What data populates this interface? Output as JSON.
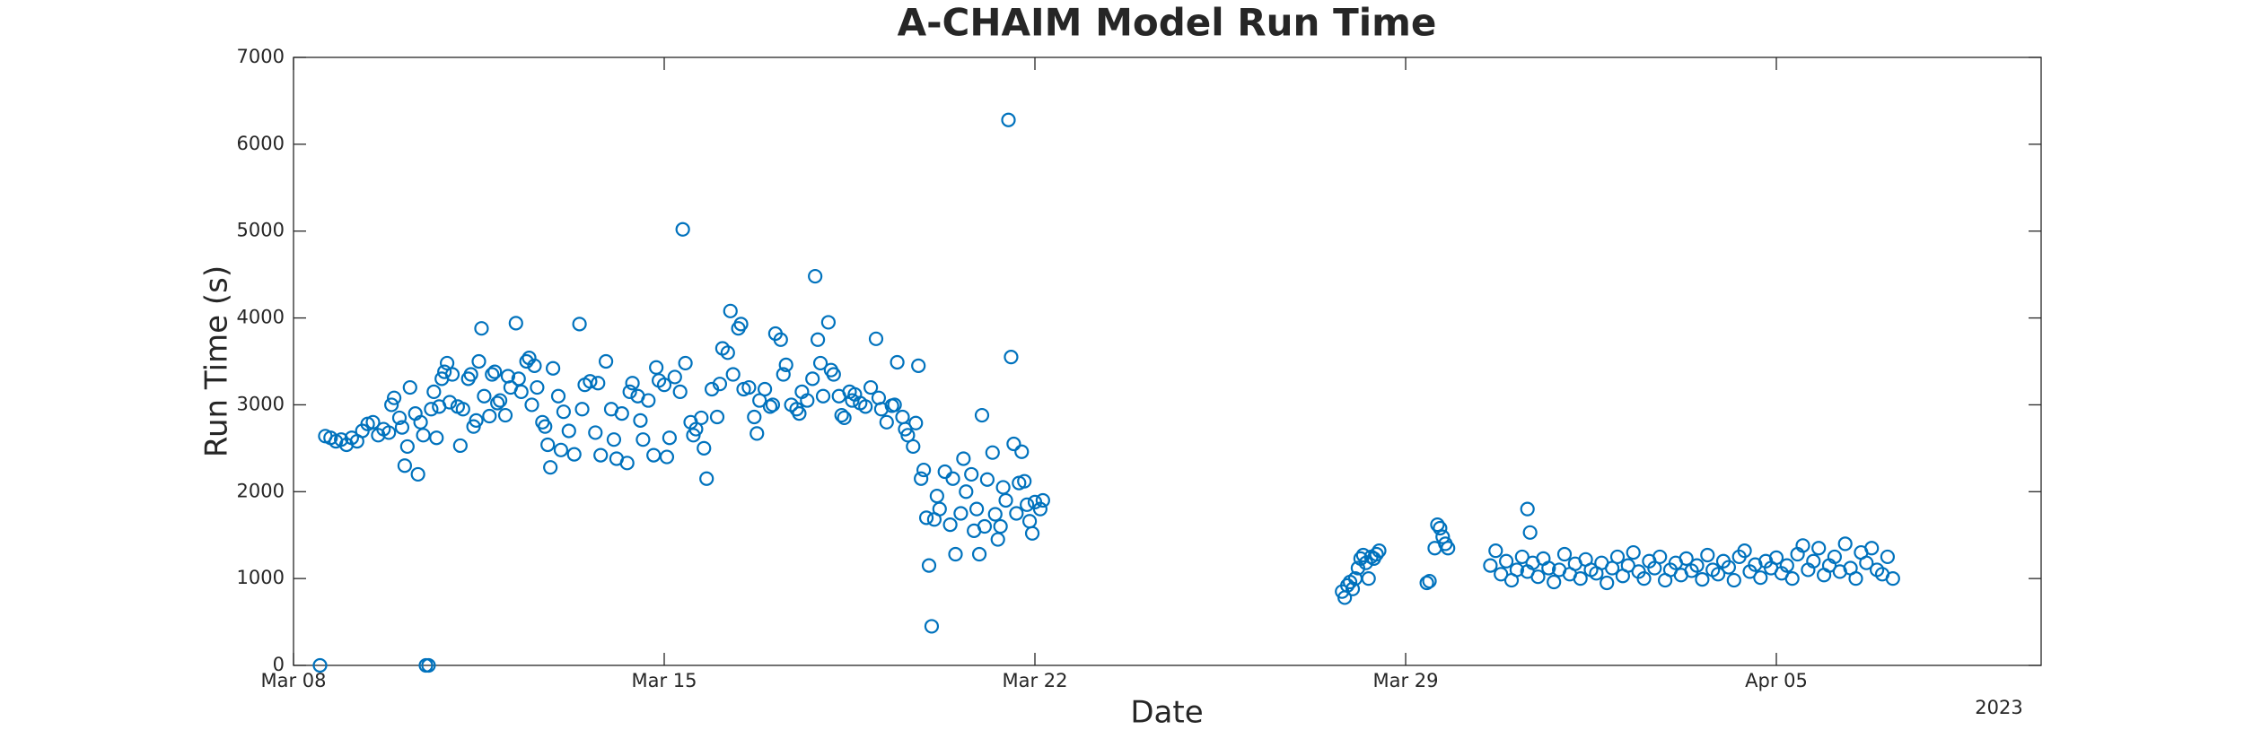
{
  "chart_data": {
    "type": "scatter",
    "title": "A-CHAIM Model Run Time",
    "xlabel": "Date",
    "ylabel": "Run Time (s)",
    "x_secondary_label": "2023",
    "color": "#0072BD",
    "xlim": [
      0,
      33
    ],
    "xticks": [
      {
        "value": 0,
        "label": "Mar 08"
      },
      {
        "value": 7,
        "label": "Mar 15"
      },
      {
        "value": 14,
        "label": "Mar 22"
      },
      {
        "value": 21,
        "label": "Mar 29"
      },
      {
        "value": 28,
        "label": "Apr 05"
      }
    ],
    "ylim": [
      0,
      7000
    ],
    "yticks": [
      0,
      1000,
      2000,
      3000,
      4000,
      5000,
      6000,
      7000
    ],
    "x": [
      0.5,
      0.6,
      0.7,
      0.8,
      0.9,
      1.0,
      1.1,
      1.2,
      1.3,
      1.4,
      1.5,
      1.6,
      1.7,
      1.8,
      1.85,
      1.9,
      2.0,
      2.05,
      2.1,
      2.15,
      2.2,
      2.3,
      2.35,
      2.4,
      2.45,
      2.5,
      2.55,
      2.6,
      2.65,
      2.7,
      2.75,
      2.8,
      2.85,
      2.9,
      2.95,
      3.0,
      3.1,
      3.15,
      3.2,
      3.3,
      3.35,
      3.4,
      3.45,
      3.5,
      3.55,
      3.6,
      3.7,
      3.75,
      3.8,
      3.85,
      3.9,
      4.0,
      4.05,
      4.1,
      4.2,
      4.25,
      4.3,
      4.4,
      4.45,
      4.5,
      4.55,
      4.6,
      4.7,
      4.75,
      4.8,
      4.85,
      4.9,
      5.0,
      5.05,
      5.1,
      5.2,
      5.3,
      5.4,
      5.45,
      5.5,
      5.6,
      5.7,
      5.75,
      5.8,
      5.9,
      6.0,
      6.05,
      6.1,
      6.2,
      6.3,
      6.35,
      6.4,
      6.5,
      6.55,
      6.6,
      6.7,
      6.8,
      6.85,
      6.9,
      7.0,
      7.05,
      7.1,
      7.2,
      7.3,
      7.35,
      7.4,
      7.5,
      7.55,
      7.6,
      7.7,
      7.75,
      7.8,
      7.9,
      8.0,
      8.05,
      8.1,
      8.2,
      8.25,
      8.3,
      8.4,
      8.45,
      8.5,
      8.6,
      8.7,
      8.75,
      8.8,
      8.9,
      9.0,
      9.05,
      9.1,
      9.2,
      9.25,
      9.3,
      9.4,
      9.5,
      9.55,
      9.6,
      9.7,
      9.8,
      9.85,
      9.9,
      9.95,
      10.0,
      10.1,
      10.15,
      10.2,
      10.3,
      10.35,
      10.4,
      10.5,
      10.55,
      10.6,
      10.7,
      10.8,
      10.9,
      11.0,
      11.05,
      11.1,
      11.2,
      11.3,
      11.35,
      11.4,
      11.5,
      11.55,
      11.6,
      11.7,
      11.75,
      11.8,
      11.85,
      11.9,
      11.95,
      12.0,
      12.05,
      12.1,
      12.15,
      12.2,
      12.3,
      12.4,
      12.45,
      12.5,
      12.6,
      12.65,
      12.7,
      12.8,
      12.85,
      12.9,
      12.95,
      13.0,
      13.05,
      13.1,
      13.2,
      13.25,
      13.3,
      13.35,
      13.4,
      13.45,
      13.5,
      13.55,
      13.6,
      13.65,
      13.7,
      13.75,
      13.8,
      13.85,
      13.9,
      13.95,
      14.0,
      14.1,
      14.15,
      19.8,
      19.85,
      19.9,
      19.95,
      20.0,
      20.05,
      20.1,
      20.15,
      20.2,
      20.25,
      20.3,
      20.35,
      20.4,
      20.45,
      20.5,
      21.4,
      21.45,
      21.55,
      21.6,
      21.65,
      21.7,
      21.75,
      21.8,
      22.6,
      22.7,
      22.8,
      22.9,
      23.0,
      23.1,
      23.2,
      23.3,
      23.4,
      23.5,
      23.6,
      23.7,
      23.8,
      23.9,
      24.0,
      24.1,
      24.2,
      24.3,
      24.4,
      24.5,
      24.6,
      24.7,
      24.8,
      24.9,
      25.0,
      25.1,
      25.2,
      25.3,
      25.4,
      25.5,
      25.6,
      25.7,
      25.8,
      25.9,
      26.0,
      26.1,
      26.2,
      26.3,
      26.4,
      26.5,
      26.6,
      26.7,
      26.8,
      26.9,
      27.0,
      27.1,
      27.2,
      27.3,
      27.4,
      27.5,
      27.6,
      27.7,
      27.8,
      27.9,
      28.0,
      28.1,
      28.2,
      28.3,
      28.4,
      28.5,
      28.6,
      28.7,
      28.8,
      28.9,
      29.0,
      29.1,
      29.2,
      29.3,
      29.4,
      29.5,
      29.6,
      29.7,
      29.8,
      29.9,
      30.0,
      30.1,
      30.2,
      23.3,
      23.35
    ],
    "values": [
      0,
      2640,
      2620,
      2580,
      2600,
      2540,
      2620,
      2580,
      2700,
      2780,
      2800,
      2650,
      2720,
      2680,
      3000,
      3080,
      2850,
      2740,
      2300,
      2520,
      3200,
      2900,
      2200,
      2800,
      2650,
      0,
      0,
      2950,
      3150,
      2620,
      2980,
      3300,
      3380,
      3480,
      3030,
      3350,
      2980,
      2530,
      2950,
      3300,
      3350,
      2750,
      2820,
      3500,
      3880,
      3100,
      2870,
      3350,
      3380,
      3020,
      3050,
      2880,
      3330,
      3200,
      3940,
      3300,
      3150,
      3500,
      3540,
      3000,
      3450,
      3200,
      2800,
      2750,
      2540,
      2280,
      3420,
      3100,
      2480,
      2920,
      2700,
      2430,
      3930,
      2950,
      3230,
      3270,
      2680,
      3250,
      2420,
      3500,
      2950,
      2600,
      2380,
      2900,
      2330,
      3150,
      3250,
      3100,
      2820,
      2600,
      3050,
      2420,
      3430,
      3280,
      3230,
      2400,
      2620,
      3320,
      3150,
      5020,
      3480,
      2800,
      2650,
      2720,
      2850,
      2500,
      2150,
      3180,
      2860,
      3240,
      3650,
      3600,
      4080,
      3350,
      3880,
      3930,
      3180,
      3200,
      2860,
      2670,
      3050,
      3180,
      2980,
      3000,
      3820,
      3750,
      3350,
      3460,
      3000,
      2950,
      2900,
      3150,
      3050,
      3300,
      4480,
      3750,
      3480,
      3100,
      3950,
      3400,
      3350,
      3100,
      2880,
      2850,
      3150,
      3050,
      3120,
      3020,
      2980,
      3200,
      3760,
      3080,
      2950,
      2800,
      2990,
      3000,
      3490,
      2860,
      2720,
      2650,
      2520,
      2790,
      3450,
      2150,
      2250,
      1700,
      1150,
      450,
      1680,
      1950,
      1800,
      2230,
      1620,
      2150,
      1280,
      1750,
      2380,
      2000,
      2200,
      1550,
      1800,
      1280,
      2880,
      1600,
      2140,
      2450,
      1740,
      1450,
      1600,
      2050,
      1900,
      6280,
      3550,
      2550,
      1750,
      2100,
      2460,
      2120,
      1850,
      1660,
      1520,
      1880,
      1800,
      1900,
      850,
      780,
      920,
      960,
      880,
      1000,
      1120,
      1230,
      1270,
      1180,
      1000,
      1250,
      1230,
      1280,
      1320,
      950,
      970,
      1350,
      1620,
      1580,
      1480,
      1400,
      1350,
      1150,
      1320,
      1050,
      1200,
      980,
      1100,
      1250,
      1080,
      1180,
      1020,
      1230,
      1120,
      960,
      1100,
      1280,
      1050,
      1170,
      1000,
      1220,
      1100,
      1060,
      1180,
      950,
      1120,
      1250,
      1030,
      1150,
      1300,
      1080,
      1000,
      1200,
      1120,
      1250,
      980,
      1100,
      1180,
      1040,
      1230,
      1090,
      1150,
      990,
      1270,
      1100,
      1050,
      1200,
      1130,
      980,
      1250,
      1320,
      1080,
      1160,
      1010,
      1200,
      1120,
      1240,
      1060,
      1150,
      1000,
      1280,
      1380,
      1100,
      1200,
      1350,
      1040,
      1150,
      1250,
      1080,
      1400,
      1120,
      1000,
      1300,
      1180,
      1350,
      1100,
      1050,
      1250,
      1000,
      1800,
      1530
    ]
  }
}
